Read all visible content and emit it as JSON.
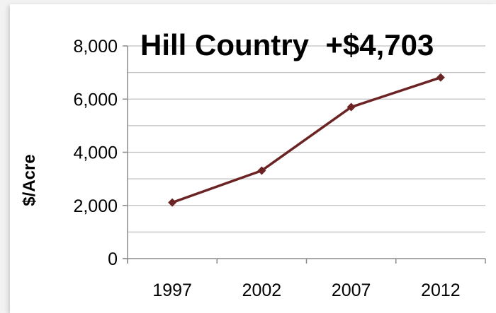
{
  "chart_data": {
    "type": "line",
    "title": "Hill Country  +$4,703",
    "xlabel": "",
    "ylabel": "$/Acre",
    "categories": [
      "1997",
      "2002",
      "2007",
      "2012"
    ],
    "series": [
      {
        "values": [
          2110,
          3310,
          5700,
          6813
        ]
      }
    ],
    "ylim": [
      0,
      8000
    ],
    "yticks": [
      0,
      2000,
      4000,
      6000,
      8000
    ],
    "ytick_labels": [
      "0",
      "2,000",
      "4,000",
      "6,000",
      "8,000"
    ],
    "grid": true,
    "line_color": "#6b2323",
    "grid_color": "#bfbfbf",
    "legend": "none"
  }
}
